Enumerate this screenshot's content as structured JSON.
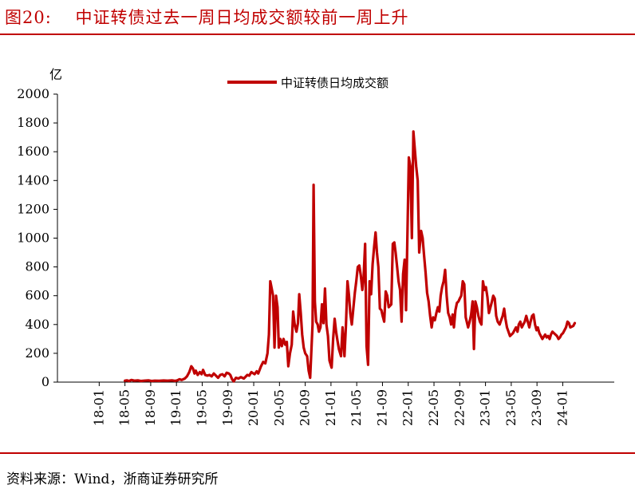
{
  "header": {
    "title": "图20:　 中证转债过去一周日均成交额较前一周上升"
  },
  "footer": {
    "source": "资料来源：Wind，浙商证券研究所"
  },
  "chart_data": {
    "type": "line",
    "ylabel": "亿",
    "ylim": [
      0,
      2000
    ],
    "yticks": [
      0,
      200,
      400,
      600,
      800,
      1000,
      1200,
      1400,
      1600,
      1800,
      2000
    ],
    "xtick_labels": [
      "18-01",
      "18-05",
      "18-09",
      "19-01",
      "19-05",
      "19-09",
      "20-01",
      "20-05",
      "20-09",
      "21-01",
      "21-05",
      "21-09",
      "22-01",
      "22-05",
      "22-09",
      "23-01",
      "23-05",
      "23-09",
      "24-01"
    ],
    "legend": {
      "position": "top-center"
    },
    "colors": {
      "series": "#c00000",
      "accent": "#c00000"
    },
    "series": [
      {
        "name": "中证转债日均成交额",
        "points": [
          [
            "2018-05-01",
            10
          ],
          [
            "2018-05-10",
            12
          ],
          [
            "2018-05-20",
            8
          ],
          [
            "2018-06-01",
            15
          ],
          [
            "2018-06-15",
            10
          ],
          [
            "2018-07-01",
            12
          ],
          [
            "2018-07-15",
            8
          ],
          [
            "2018-08-01",
            10
          ],
          [
            "2018-08-20",
            12
          ],
          [
            "2018-09-05",
            8
          ],
          [
            "2018-09-20",
            10
          ],
          [
            "2018-10-10",
            9
          ],
          [
            "2018-11-01",
            11
          ],
          [
            "2018-11-20",
            10
          ],
          [
            "2018-12-10",
            12
          ],
          [
            "2018-12-25",
            9
          ],
          [
            "2019-01-05",
            12
          ],
          [
            "2019-01-15",
            20
          ],
          [
            "2019-01-25",
            15
          ],
          [
            "2019-02-10",
            25
          ],
          [
            "2019-02-20",
            40
          ],
          [
            "2019-03-01",
            70
          ],
          [
            "2019-03-10",
            110
          ],
          [
            "2019-03-18",
            95
          ],
          [
            "2019-03-25",
            60
          ],
          [
            "2019-04-01",
            80
          ],
          [
            "2019-04-10",
            50
          ],
          [
            "2019-04-20",
            70
          ],
          [
            "2019-04-28",
            55
          ],
          [
            "2019-05-05",
            85
          ],
          [
            "2019-05-15",
            50
          ],
          [
            "2019-05-25",
            45
          ],
          [
            "2019-06-05",
            50
          ],
          [
            "2019-06-15",
            40
          ],
          [
            "2019-06-25",
            60
          ],
          [
            "2019-07-05",
            45
          ],
          [
            "2019-07-15",
            30
          ],
          [
            "2019-07-25",
            50
          ],
          [
            "2019-08-05",
            55
          ],
          [
            "2019-08-15",
            40
          ],
          [
            "2019-08-25",
            65
          ],
          [
            "2019-09-05",
            60
          ],
          [
            "2019-09-12",
            50
          ],
          [
            "2019-09-20",
            20
          ],
          [
            "2019-09-28",
            5
          ],
          [
            "2019-10-08",
            30
          ],
          [
            "2019-10-20",
            25
          ],
          [
            "2019-11-01",
            35
          ],
          [
            "2019-11-15",
            25
          ],
          [
            "2019-12-01",
            50
          ],
          [
            "2019-12-10",
            45
          ],
          [
            "2019-12-20",
            70
          ],
          [
            "2020-01-05",
            55
          ],
          [
            "2020-01-15",
            75
          ],
          [
            "2020-01-22",
            60
          ],
          [
            "2020-02-05",
            110
          ],
          [
            "2020-02-15",
            140
          ],
          [
            "2020-02-25",
            130
          ],
          [
            "2020-03-05",
            200
          ],
          [
            "2020-03-12",
            330
          ],
          [
            "2020-03-18",
            700
          ],
          [
            "2020-03-25",
            650
          ],
          [
            "2020-04-01",
            600
          ],
          [
            "2020-04-08",
            240
          ],
          [
            "2020-04-15",
            600
          ],
          [
            "2020-04-22",
            520
          ],
          [
            "2020-04-28",
            240
          ],
          [
            "2020-05-05",
            300
          ],
          [
            "2020-05-12",
            250
          ],
          [
            "2020-05-20",
            300
          ],
          [
            "2020-05-28",
            260
          ],
          [
            "2020-06-05",
            280
          ],
          [
            "2020-06-12",
            110
          ],
          [
            "2020-06-20",
            200
          ],
          [
            "2020-06-28",
            260
          ],
          [
            "2020-07-05",
            490
          ],
          [
            "2020-07-12",
            400
          ],
          [
            "2020-07-20",
            350
          ],
          [
            "2020-07-27",
            410
          ],
          [
            "2020-08-03",
            610
          ],
          [
            "2020-08-10",
            480
          ],
          [
            "2020-08-17",
            330
          ],
          [
            "2020-08-24",
            240
          ],
          [
            "2020-09-01",
            200
          ],
          [
            "2020-09-10",
            180
          ],
          [
            "2020-09-17",
            80
          ],
          [
            "2020-09-24",
            30
          ],
          [
            "2020-10-05",
            400
          ],
          [
            "2020-10-10",
            1370
          ],
          [
            "2020-10-16",
            560
          ],
          [
            "2020-10-22",
            420
          ],
          [
            "2020-10-29",
            400
          ],
          [
            "2020-11-05",
            350
          ],
          [
            "2020-11-12",
            380
          ],
          [
            "2020-11-19",
            540
          ],
          [
            "2020-11-26",
            410
          ],
          [
            "2020-12-03",
            650
          ],
          [
            "2020-12-10",
            400
          ],
          [
            "2020-12-17",
            320
          ],
          [
            "2020-12-24",
            150
          ],
          [
            "2021-01-04",
            100
          ],
          [
            "2021-01-11",
            300
          ],
          [
            "2021-01-18",
            440
          ],
          [
            "2021-01-25",
            350
          ],
          [
            "2021-02-01",
            290
          ],
          [
            "2021-02-08",
            230
          ],
          [
            "2021-02-18",
            180
          ],
          [
            "2021-02-25",
            380
          ],
          [
            "2021-03-04",
            180
          ],
          [
            "2021-03-11",
            400
          ],
          [
            "2021-03-18",
            700
          ],
          [
            "2021-03-25",
            600
          ],
          [
            "2021-04-01",
            480
          ],
          [
            "2021-04-08",
            400
          ],
          [
            "2021-04-15",
            510
          ],
          [
            "2021-04-22",
            620
          ],
          [
            "2021-04-29",
            700
          ],
          [
            "2021-05-06",
            800
          ],
          [
            "2021-05-13",
            810
          ],
          [
            "2021-05-20",
            740
          ],
          [
            "2021-05-27",
            640
          ],
          [
            "2021-06-03",
            730
          ],
          [
            "2021-06-10",
            960
          ],
          [
            "2021-06-17",
            250
          ],
          [
            "2021-06-24",
            120
          ],
          [
            "2021-07-01",
            700
          ],
          [
            "2021-07-08",
            610
          ],
          [
            "2021-07-15",
            820
          ],
          [
            "2021-07-22",
            940
          ],
          [
            "2021-07-29",
            1040
          ],
          [
            "2021-08-05",
            900
          ],
          [
            "2021-08-12",
            800
          ],
          [
            "2021-08-19",
            510
          ],
          [
            "2021-08-26",
            500
          ],
          [
            "2021-09-02",
            460
          ],
          [
            "2021-09-09",
            420
          ],
          [
            "2021-09-16",
            630
          ],
          [
            "2021-09-23",
            600
          ],
          [
            "2021-09-30",
            520
          ],
          [
            "2021-10-12",
            540
          ],
          [
            "2021-10-19",
            960
          ],
          [
            "2021-10-26",
            970
          ],
          [
            "2021-11-02",
            900
          ],
          [
            "2021-11-09",
            800
          ],
          [
            "2021-11-16",
            700
          ],
          [
            "2021-11-23",
            640
          ],
          [
            "2021-11-30",
            420
          ],
          [
            "2021-12-07",
            750
          ],
          [
            "2021-12-14",
            850
          ],
          [
            "2021-12-21",
            500
          ],
          [
            "2022-01-04",
            1560
          ],
          [
            "2022-01-11",
            1500
          ],
          [
            "2022-01-18",
            1000
          ],
          [
            "2022-01-25",
            1740
          ],
          [
            "2022-02-08",
            1500
          ],
          [
            "2022-02-15",
            1400
          ],
          [
            "2022-02-22",
            900
          ],
          [
            "2022-03-01",
            1050
          ],
          [
            "2022-03-08",
            1000
          ],
          [
            "2022-03-15",
            880
          ],
          [
            "2022-03-22",
            760
          ],
          [
            "2022-03-29",
            620
          ],
          [
            "2022-04-06",
            560
          ],
          [
            "2022-04-13",
            460
          ],
          [
            "2022-04-20",
            380
          ],
          [
            "2022-04-27",
            450
          ],
          [
            "2022-05-05",
            430
          ],
          [
            "2022-05-12",
            480
          ],
          [
            "2022-05-19",
            520
          ],
          [
            "2022-05-26",
            490
          ],
          [
            "2022-06-02",
            600
          ],
          [
            "2022-06-09",
            660
          ],
          [
            "2022-06-16",
            700
          ],
          [
            "2022-06-23",
            780
          ],
          [
            "2022-06-30",
            600
          ],
          [
            "2022-07-07",
            480
          ],
          [
            "2022-07-14",
            450
          ],
          [
            "2022-07-21",
            400
          ],
          [
            "2022-07-28",
            470
          ],
          [
            "2022-08-04",
            380
          ],
          [
            "2022-08-11",
            500
          ],
          [
            "2022-08-18",
            550
          ],
          [
            "2022-08-25",
            560
          ],
          [
            "2022-09-01",
            580
          ],
          [
            "2022-09-08",
            600
          ],
          [
            "2022-09-15",
            700
          ],
          [
            "2022-09-22",
            680
          ],
          [
            "2022-09-29",
            450
          ],
          [
            "2022-10-10",
            380
          ],
          [
            "2022-10-17",
            420
          ],
          [
            "2022-10-24",
            470
          ],
          [
            "2022-10-31",
            560
          ],
          [
            "2022-11-07",
            230
          ],
          [
            "2022-11-14",
            560
          ],
          [
            "2022-11-21",
            520
          ],
          [
            "2022-11-28",
            460
          ],
          [
            "2022-12-05",
            420
          ],
          [
            "2022-12-12",
            400
          ],
          [
            "2022-12-19",
            700
          ],
          [
            "2022-12-26",
            640
          ],
          [
            "2023-01-03",
            660
          ],
          [
            "2023-01-10",
            590
          ],
          [
            "2023-01-17",
            480
          ],
          [
            "2023-01-31",
            560
          ],
          [
            "2023-02-07",
            600
          ],
          [
            "2023-02-14",
            580
          ],
          [
            "2023-02-21",
            460
          ],
          [
            "2023-02-28",
            420
          ],
          [
            "2023-03-07",
            400
          ],
          [
            "2023-03-14",
            430
          ],
          [
            "2023-03-21",
            460
          ],
          [
            "2023-03-28",
            510
          ],
          [
            "2023-04-04",
            440
          ],
          [
            "2023-04-11",
            380
          ],
          [
            "2023-04-18",
            350
          ],
          [
            "2023-04-25",
            320
          ],
          [
            "2023-05-09",
            340
          ],
          [
            "2023-05-16",
            360
          ],
          [
            "2023-05-23",
            380
          ],
          [
            "2023-05-30",
            350
          ],
          [
            "2023-06-06",
            400
          ],
          [
            "2023-06-13",
            420
          ],
          [
            "2023-06-20",
            380
          ],
          [
            "2023-06-27",
            400
          ],
          [
            "2023-07-04",
            420
          ],
          [
            "2023-07-11",
            460
          ],
          [
            "2023-07-18",
            420
          ],
          [
            "2023-07-25",
            380
          ],
          [
            "2023-08-01",
            420
          ],
          [
            "2023-08-08",
            460
          ],
          [
            "2023-08-15",
            470
          ],
          [
            "2023-08-22",
            400
          ],
          [
            "2023-08-29",
            360
          ],
          [
            "2023-09-05",
            380
          ],
          [
            "2023-09-12",
            340
          ],
          [
            "2023-09-19",
            320
          ],
          [
            "2023-09-26",
            300
          ],
          [
            "2023-10-09",
            330
          ],
          [
            "2023-10-16",
            310
          ],
          [
            "2023-10-23",
            320
          ],
          [
            "2023-10-30",
            300
          ],
          [
            "2023-11-06",
            330
          ],
          [
            "2023-11-13",
            350
          ],
          [
            "2023-11-20",
            340
          ],
          [
            "2023-11-27",
            330
          ],
          [
            "2023-12-04",
            320
          ],
          [
            "2023-12-11",
            300
          ],
          [
            "2023-12-18",
            310
          ],
          [
            "2023-12-25",
            330
          ],
          [
            "2024-01-02",
            340
          ],
          [
            "2024-01-09",
            360
          ],
          [
            "2024-01-16",
            380
          ],
          [
            "2024-01-23",
            420
          ],
          [
            "2024-01-30",
            410
          ],
          [
            "2024-02-06",
            380
          ],
          [
            "2024-02-20",
            390
          ],
          [
            "2024-02-27",
            410
          ]
        ]
      }
    ]
  }
}
